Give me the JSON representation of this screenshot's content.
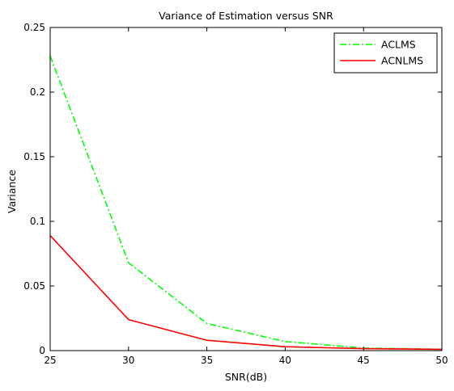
{
  "chart_data": {
    "type": "line",
    "title": "Variance of Estimation versus SNR",
    "xlabel": "SNR(dB)",
    "ylabel": "Variance",
    "xlim": [
      25,
      50
    ],
    "ylim": [
      0,
      0.25
    ],
    "xticks": [
      25,
      30,
      35,
      40,
      45,
      50
    ],
    "xtick_labels": [
      "25",
      "30",
      "35",
      "40",
      "45",
      "50"
    ],
    "yticks": [
      0,
      0.05,
      0.1,
      0.15,
      0.2,
      0.25
    ],
    "ytick_labels": [
      "0",
      "0.05",
      "0.1",
      "0.15",
      "0.2",
      "0.25"
    ],
    "grid": false,
    "legend_position": "top-right",
    "x": [
      25,
      30,
      35,
      40,
      45,
      50
    ],
    "series": [
      {
        "name": "ACLMS",
        "color": "#00ff00",
        "line_style": "dash-dot",
        "values": [
          0.228,
          0.068,
          0.021,
          0.007,
          0.002,
          0.001
        ]
      },
      {
        "name": "ACNLMS",
        "color": "#ff0000",
        "line_style": "solid",
        "values": [
          0.089,
          0.024,
          0.008,
          0.003,
          0.0015,
          0.001
        ]
      }
    ]
  }
}
